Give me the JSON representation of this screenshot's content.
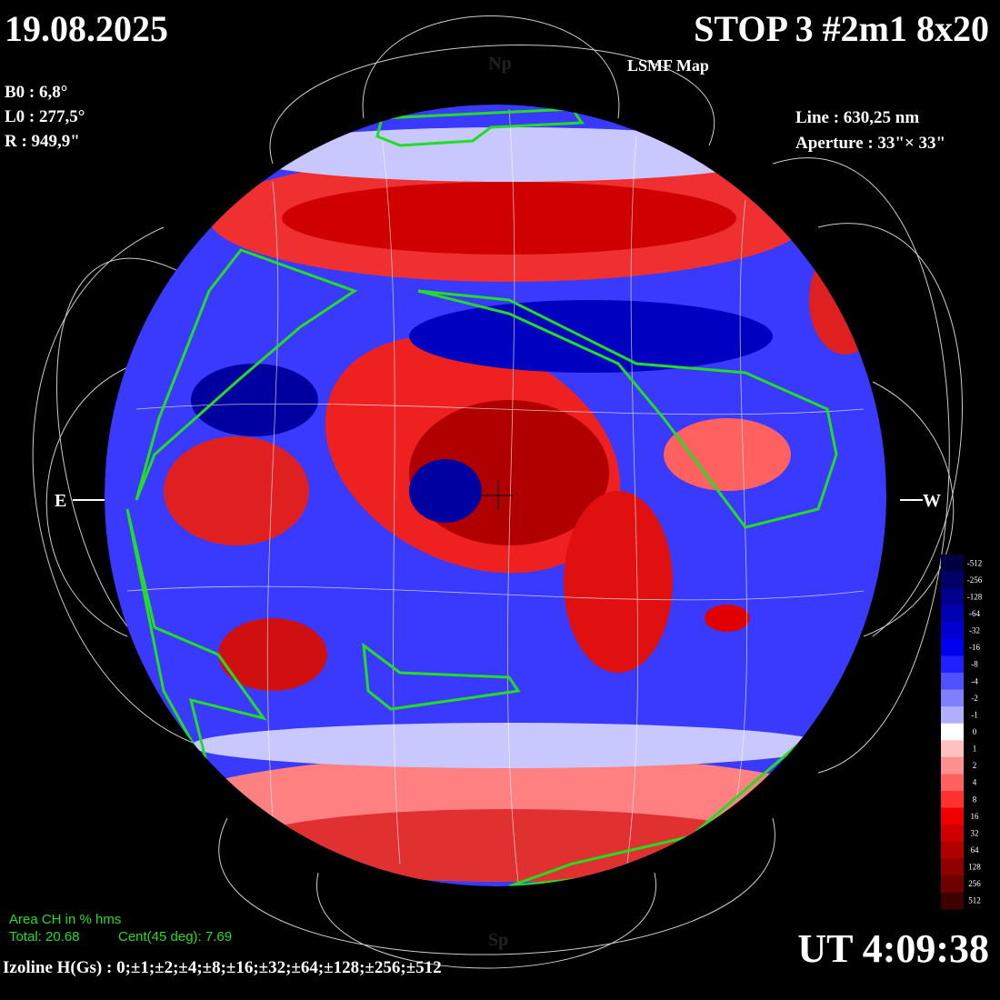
{
  "header": {
    "date": "19.08.2025",
    "title": "STOP 3 #2m1 8x20",
    "subtitle": "LSMF  Map"
  },
  "params": {
    "b0": "B0 : 6,8°",
    "l0": "L0 : 277,5°",
    "r": "R  : 949,9\"",
    "line": "Line :  630,25 nm",
    "aperture": "Aperture : 33\"× 33\""
  },
  "directions": {
    "north": "Np",
    "south": "Sp",
    "east": "E",
    "west": "W"
  },
  "area": {
    "title": "Area CH in % hms",
    "total": "Total: 20.68",
    "cent": "Cent(45 deg): 7.69"
  },
  "time": "UT 4:09:38",
  "izoline": "Izoline H(Gs) : 0;±1;±2;±4;±8;±16;±32;±64;±128;±256;±512",
  "colorbar": {
    "ticks": [
      -512,
      -256,
      -128,
      -64,
      -32,
      -16,
      -8,
      -4,
      -2,
      -1,
      0,
      1,
      2,
      4,
      8,
      16,
      32,
      64,
      128,
      256,
      512
    ],
    "colors": [
      "#000040",
      "#000066",
      "#00008c",
      "#0000b0",
      "#0000d0",
      "#0000f0",
      "#2020ff",
      "#5050ff",
      "#8080ff",
      "#b0b0ff",
      "#ffffff",
      "#ffc0c0",
      "#ff9090",
      "#ff6060",
      "#ff3030",
      "#f00000",
      "#d00000",
      "#b00000",
      "#900000",
      "#700000",
      "#400000"
    ]
  }
}
